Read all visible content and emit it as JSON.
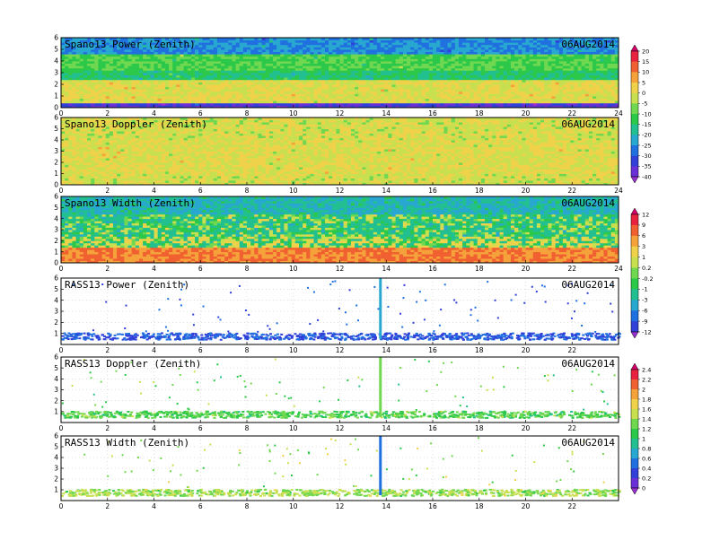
{
  "chart_data": [
    {
      "type": "heatmap",
      "title": "Spano13 Power (Zenith)",
      "date": "06AUG2014",
      "xlim": [
        0,
        24
      ],
      "ylim": [
        0,
        6
      ],
      "x_ticks": [
        "0",
        "2",
        "4",
        "6",
        "8",
        "10",
        "12",
        "14",
        "16",
        "18",
        "20",
        "22",
        "24"
      ],
      "y_ticks": [
        "0",
        "1",
        "2",
        "3",
        "4",
        "5",
        "6"
      ],
      "field": "power",
      "colorbar": {
        "labels": [
          "20",
          "15",
          "10",
          "5",
          "0",
          "-5",
          "-10",
          "-15",
          "-20",
          "-25",
          "-30",
          "-35",
          "-40"
        ],
        "colors": [
          "#d6006a",
          "#e8223e",
          "#f06030",
          "#f6a23a",
          "#f0d24a",
          "#c8e050",
          "#70d850",
          "#2cc84a",
          "#22c090",
          "#28a8d0",
          "#2070e0",
          "#3040d8",
          "#6a30d8",
          "#9830d0"
        ]
      },
      "layers": [
        {
          "y_range": [
            0.0,
            0.5
          ],
          "value": -35
        },
        {
          "y_range": [
            0.5,
            2.5
          ],
          "value": 0
        },
        {
          "y_range": [
            2.5,
            3.3
          ],
          "value": -15
        },
        {
          "y_range": [
            3.3,
            4.7
          ],
          "value": -10
        },
        {
          "y_range": [
            4.7,
            6.0
          ],
          "value": -25
        }
      ]
    },
    {
      "type": "heatmap",
      "title": "Spano13 Doppler (Zenith)",
      "date": "06AUG2014",
      "xlim": [
        0,
        24
      ],
      "ylim": [
        0,
        6
      ],
      "x_ticks": [
        "0",
        "2",
        "4",
        "6",
        "8",
        "10",
        "12",
        "14",
        "16",
        "18",
        "20",
        "22",
        "24"
      ],
      "y_ticks": [
        "0",
        "1",
        "2",
        "3",
        "4",
        "5",
        "6"
      ],
      "field": "doppler",
      "layers": [
        {
          "y_range": [
            0.0,
            1.0
          ],
          "value": -1
        },
        {
          "y_range": [
            1.0,
            4.0
          ],
          "value": 0
        },
        {
          "y_range": [
            4.0,
            6.0
          ],
          "value": -1
        }
      ]
    },
    {
      "type": "heatmap",
      "title": "Spano13 Width (Zenith)",
      "date": "06AUG2014",
      "xlim": [
        0,
        24
      ],
      "ylim": [
        0,
        6
      ],
      "x_ticks": [
        "0",
        "2",
        "4",
        "6",
        "8",
        "10",
        "12",
        "14",
        "16",
        "18",
        "20",
        "22",
        "24"
      ],
      "y_ticks": [
        "0",
        "1",
        "2",
        "3",
        "4",
        "5",
        "6"
      ],
      "field": "width",
      "colorbar": {
        "labels": [
          "12",
          "9",
          "6",
          "3",
          "1",
          "0.2",
          "-0.2",
          "-1",
          "-3",
          "-6",
          "-9",
          "-12"
        ],
        "colors": [
          "#d6006a",
          "#e8223e",
          "#f06030",
          "#f6a23a",
          "#f0d24a",
          "#c8e050",
          "#70d850",
          "#2cc84a",
          "#22c090",
          "#28a8d0",
          "#2070e0",
          "#3040d8",
          "#9830d0"
        ]
      },
      "layers": [
        {
          "y_range": [
            0.0,
            1.5
          ],
          "value": 6
        },
        {
          "y_range": [
            1.5,
            2.5
          ],
          "value": 0.2
        },
        {
          "y_range": [
            2.5,
            4.5
          ],
          "value": -1
        },
        {
          "y_range": [
            4.5,
            6.0
          ],
          "value": -3
        }
      ]
    },
    {
      "type": "scatter",
      "title": "RASS13 Power (Zenith)",
      "date": "06AUG2014",
      "xlim": [
        0,
        24
      ],
      "ylim": [
        0,
        6
      ],
      "x_ticks": [
        "0",
        "2",
        "4",
        "6",
        "8",
        "10",
        "12",
        "14",
        "16",
        "18",
        "20",
        "22"
      ],
      "y_ticks": [
        "1",
        "2",
        "3",
        "4",
        "5",
        "6"
      ],
      "field": "power",
      "band": {
        "y_range": [
          0.5,
          1.1
        ],
        "value": -9
      },
      "spike": {
        "x": 13.75,
        "y_range": [
          0.5,
          6.0
        ],
        "value": -6
      }
    },
    {
      "type": "scatter",
      "title": "RASS13 Doppler (Zenith)",
      "date": "06AUG2014",
      "xlim": [
        0,
        24
      ],
      "ylim": [
        0,
        6
      ],
      "x_ticks": [
        "0",
        "2",
        "4",
        "6",
        "8",
        "10",
        "12",
        "14",
        "16",
        "18",
        "20",
        "22"
      ],
      "y_ticks": [
        "1",
        "2",
        "3",
        "4",
        "5",
        "6"
      ],
      "field": "doppler",
      "colorbar": {
        "labels": [
          "2.4",
          "2.2",
          "2",
          "1.8",
          "1.6",
          "1.4",
          "1.2",
          "1",
          "0.8",
          "0.6",
          "0.4",
          "0.2",
          "0"
        ],
        "colors": [
          "#d6006a",
          "#e8223e",
          "#f06030",
          "#f6a23a",
          "#f0d24a",
          "#c8e050",
          "#70d850",
          "#2cc84a",
          "#22c090",
          "#28a8d0",
          "#2070e0",
          "#3040d8",
          "#6a30d8",
          "#9830d0"
        ]
      },
      "band": {
        "y_range": [
          0.5,
          1.1
        ],
        "value": 1.2
      },
      "spike": {
        "x": 13.75,
        "y_range": [
          0.5,
          6.0
        ],
        "value": 1.2
      }
    },
    {
      "type": "scatter",
      "title": "RASS13 Width (Zenith)",
      "date": "06AUG2014",
      "xlim": [
        0,
        24
      ],
      "ylim": [
        0,
        6
      ],
      "x_ticks": [
        "0",
        "2",
        "4",
        "6",
        "8",
        "10",
        "12",
        "14",
        "16",
        "18",
        "20",
        "22"
      ],
      "y_ticks": [
        "1",
        "2",
        "3",
        "4",
        "5",
        "6"
      ],
      "field": "width",
      "band": {
        "y_range": [
          0.5,
          1.1
        ],
        "value": 1.4
      },
      "spike": {
        "x": 13.75,
        "y_range": [
          0.5,
          6.0
        ],
        "value": 0.4
      }
    }
  ]
}
